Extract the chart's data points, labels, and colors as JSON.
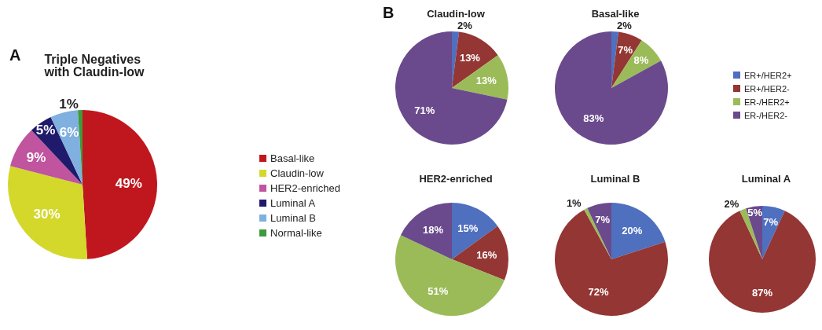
{
  "chart_data": [
    {
      "type": "pie",
      "title": "Triple Negatives with Claudin-low",
      "annotations": [
        "A"
      ],
      "legend": "right",
      "categories": [
        "Basal-like",
        "Claudin-low",
        "HER2-enriched",
        "Luminal A",
        "Luminal B",
        "Normal-like"
      ],
      "values": [
        49,
        30,
        9,
        5,
        6,
        1
      ],
      "value_labels": [
        "49%",
        "30%",
        "9%",
        "5%",
        "6%",
        "1%"
      ],
      "colors": [
        "#c0171e",
        "#d4d82a",
        "#c0549e",
        "#1f1a6b",
        "#7fb0e0",
        "#3f9a3a"
      ]
    },
    {
      "type": "pie",
      "title": "Claudin-low",
      "annotations": [
        "B"
      ],
      "legend": false,
      "categories": [
        null,
        null,
        null,
        null
      ],
      "values": [
        2,
        13,
        13,
        71
      ],
      "value_labels": [
        "2%",
        "13%",
        "13%",
        "71%"
      ],
      "colors": [
        "#4f6fbf",
        "#943634",
        "#9bbb59",
        "#6a4a8c"
      ]
    },
    {
      "type": "pie",
      "title": "Basal-like",
      "legend": "right",
      "categories": [
        "ER+/HER2+",
        "ER+/HER2-",
        "ER-/HER2+",
        "ER-/HER2-"
      ],
      "values": [
        2,
        7,
        8,
        83
      ],
      "value_labels": [
        "2%",
        "7%",
        "8%",
        "83%"
      ],
      "colors": [
        "#4f6fbf",
        "#943634",
        "#9bbb59",
        "#6a4a8c"
      ]
    },
    {
      "type": "pie",
      "title": "HER2-enriched",
      "legend": false,
      "categories": [
        null,
        null,
        null,
        null
      ],
      "values": [
        15,
        16,
        51,
        18
      ],
      "value_labels": [
        "15%",
        "16%",
        "51%",
        "18%"
      ],
      "colors": [
        "#4f6fbf",
        "#943634",
        "#9bbb59",
        "#6a4a8c"
      ]
    },
    {
      "type": "pie",
      "title": "Luminal B",
      "legend": false,
      "categories": [
        null,
        null,
        null,
        null
      ],
      "values": [
        20,
        72,
        1,
        7
      ],
      "value_labels": [
        "20%",
        "72%",
        "1%",
        "7%"
      ],
      "colors": [
        "#4f6fbf",
        "#943634",
        "#9bbb59",
        "#6a4a8c"
      ]
    },
    {
      "type": "pie",
      "title": "Luminal A",
      "legend": false,
      "categories": [
        null,
        null,
        null,
        null
      ],
      "values": [
        7,
        87,
        2,
        5
      ],
      "value_labels": [
        "7%",
        "87%",
        "2%",
        "5%"
      ],
      "colors": [
        "#4f6fbf",
        "#943634",
        "#9bbb59",
        "#6a4a8c"
      ]
    }
  ]
}
